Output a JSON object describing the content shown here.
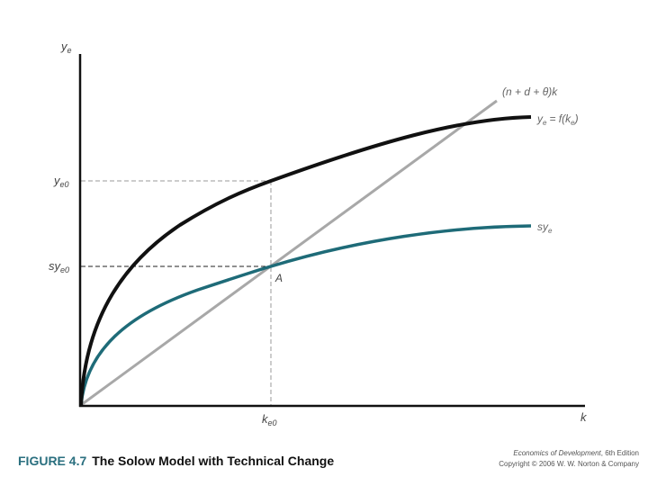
{
  "diagram": {
    "y_axis_label": "y",
    "y_axis_sub": "e",
    "x_axis_label": "k",
    "y_tick_high": "y",
    "y_tick_high_sub": "e0",
    "y_tick_low": "sy",
    "y_tick_low_sub": "e0",
    "x_tick": "k",
    "x_tick_sub": "e0",
    "curves": {
      "output": {
        "label": "y",
        "label_sub": "e",
        "label_rest": "= f(k",
        "label_rest_sub": "e",
        "label_close": ")",
        "color": "#111111"
      },
      "savings": {
        "label": "sy",
        "label_sub": "e",
        "color": "#1e6b78"
      },
      "break_even": {
        "label": "(n + d + θ)k",
        "color": "#a8a8a8"
      }
    },
    "point_label": "A",
    "dashed_color": "#9a9a9a"
  },
  "caption": {
    "figure_number": "FIGURE 4.7",
    "title": "The Solow Model with Technical Change"
  },
  "credit": {
    "book_title": "Economics of Development",
    "edition": ", 6th Edition",
    "copyright": "Copyright © 2006 W. W. Norton & Company"
  }
}
